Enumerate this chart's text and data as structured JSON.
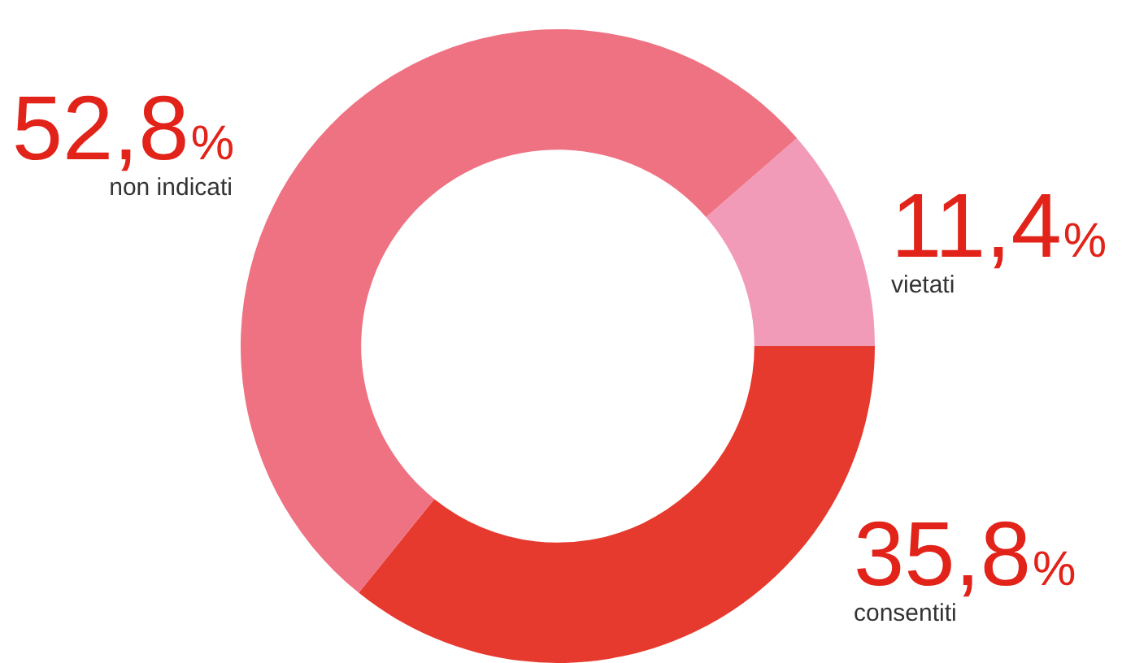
{
  "chart_data": {
    "type": "donut",
    "categories": [
      "vietati",
      "consentiti",
      "non indicati"
    ],
    "values": [
      11.4,
      35.8,
      52.8
    ],
    "colors": [
      "#f29bb8",
      "#e63a2e",
      "#ee7282"
    ],
    "value_labels": [
      "11,4%",
      "35,8%",
      "52,8%"
    ],
    "legend": false
  }
}
